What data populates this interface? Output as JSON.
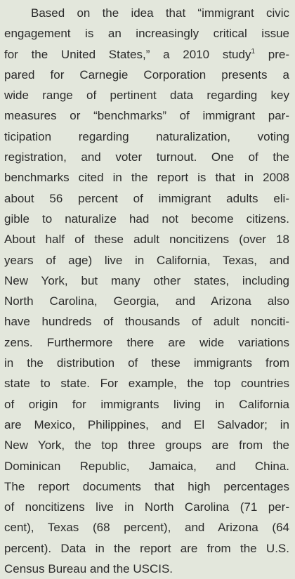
{
  "paragraph": {
    "lines": [
      "Based on the idea that “immigrant civic",
      "engagement is an increasingly critical issue",
      {
        "text": "for the United States,” a 2010 study",
        "footnote": "1",
        "continuation": "pre-"
      },
      "pared for Carnegie Corporation presents a",
      "wide range of pertinent data regarding key",
      "measures or “benchmarks” of immigrant par-",
      "ticipation regarding naturalization, voting",
      "registration, and voter turnout. One of the",
      "benchmarks cited in the report is that in 2008",
      "about 56 percent of immigrant adults eli-",
      "gible to naturalize had not become citizens.",
      "About half of these adult noncitizens (over 18",
      "years of age) live in California, Texas, and",
      "New York, but many other states, including",
      "North Carolina, Georgia, and Arizona also",
      "have hundreds of thousands of adult nonciti-",
      "zens. Furthermore there are wide variations",
      "in the distribution of these immigrants from",
      "state to state. For example, the top countries",
      "of origin for immigrants living in California",
      "are Mexico, Philippines, and El Salvador; in",
      "New York, the top three groups are from the",
      "Dominican Republic, Jamaica, and China.",
      "The report documents that high percentages",
      "of noncitizens live in North Carolina (71 per-",
      "cent), Texas (68 percent), and Arizona (64",
      "percent). Data in the report are from the U.S.",
      "Census Bureau and the USCIS."
    ]
  }
}
